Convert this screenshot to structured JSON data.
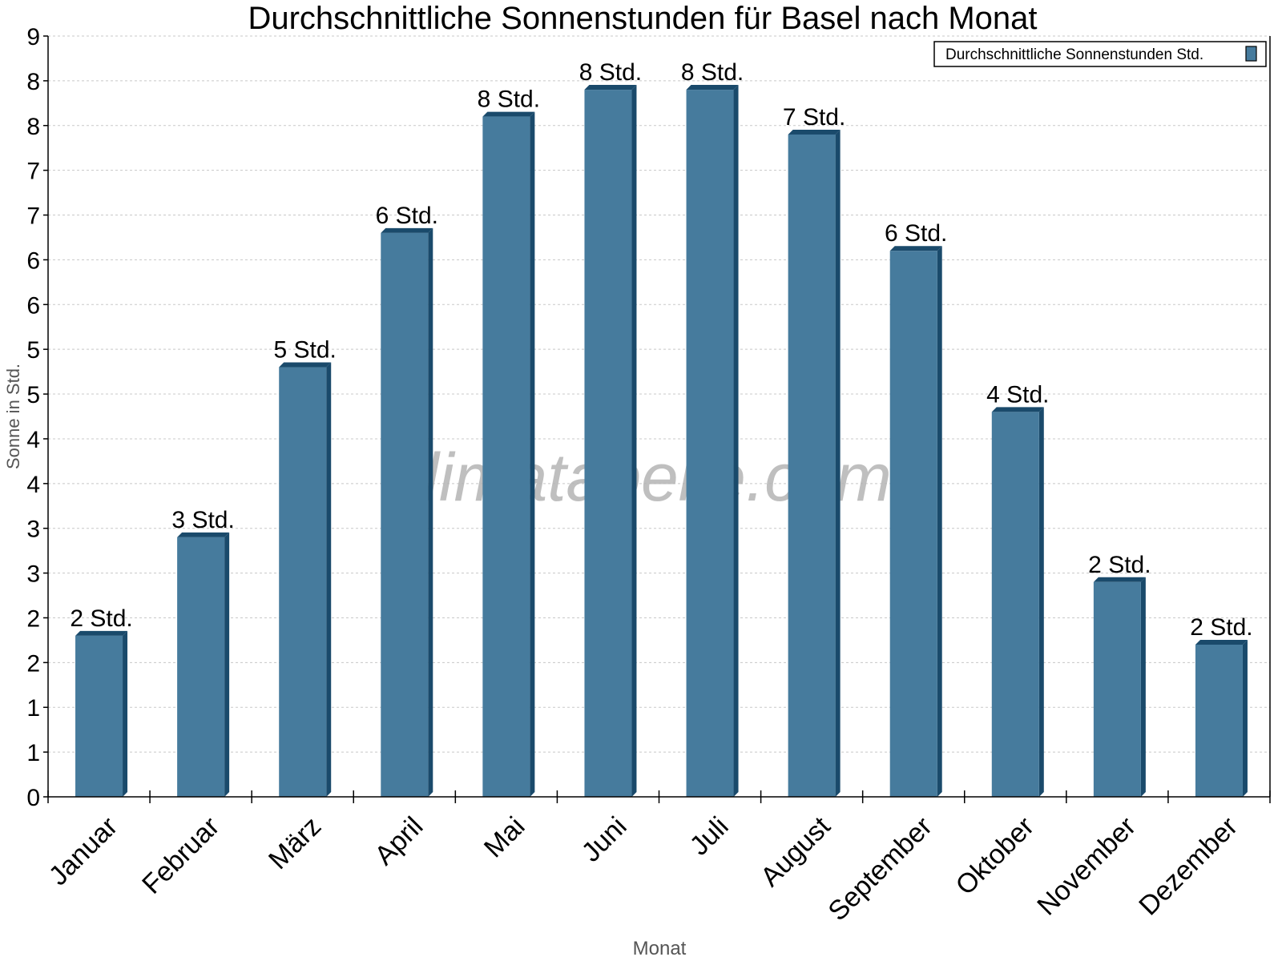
{
  "chart_data": {
    "type": "bar",
    "title": "Durchschnittliche Sonnenstunden für Basel nach Monat",
    "xlabel": "Monat",
    "ylabel": "Sonne in Std.",
    "watermark": "klimatabelle.com",
    "categories": [
      "Januar",
      "Februar",
      "März",
      "April",
      "Mai",
      "Juni",
      "Juli",
      "August",
      "September",
      "Oktober",
      "November",
      "Dezember"
    ],
    "series": [
      {
        "name": "Durchschnittliche Sonnenstunden Std.",
        "values": [
          1.8,
          2.9,
          4.8,
          6.3,
          7.6,
          7.9,
          7.9,
          7.4,
          6.1,
          4.3,
          2.4,
          1.7
        ],
        "data_labels": [
          "2 Std.",
          "3 Std.",
          "5 Std.",
          "6 Std.",
          "8 Std.",
          "8 Std.",
          "8 Std.",
          "7 Std.",
          "6 Std.",
          "4 Std.",
          "2 Std.",
          "2 Std."
        ]
      }
    ],
    "ylim": [
      0,
      8.5
    ],
    "ytick_values": [
      0,
      0.5,
      1,
      1.5,
      2,
      2.5,
      3,
      3.5,
      4,
      4.5,
      5,
      5.5,
      6,
      6.5,
      7,
      7.5,
      8,
      8.5
    ],
    "ytick_labels": [
      "0",
      "1",
      "1",
      "2",
      "2",
      "3",
      "3",
      "4",
      "4",
      "5",
      "5",
      "6",
      "6",
      "7",
      "7",
      "8",
      "8",
      "9"
    ],
    "grid": true,
    "legend_placement": "top-right",
    "colors": {
      "bar": "#467b9d",
      "bar_side": "#1a4a6b",
      "grid": "#c8c8c8",
      "watermark": "#b4b4b4"
    }
  }
}
